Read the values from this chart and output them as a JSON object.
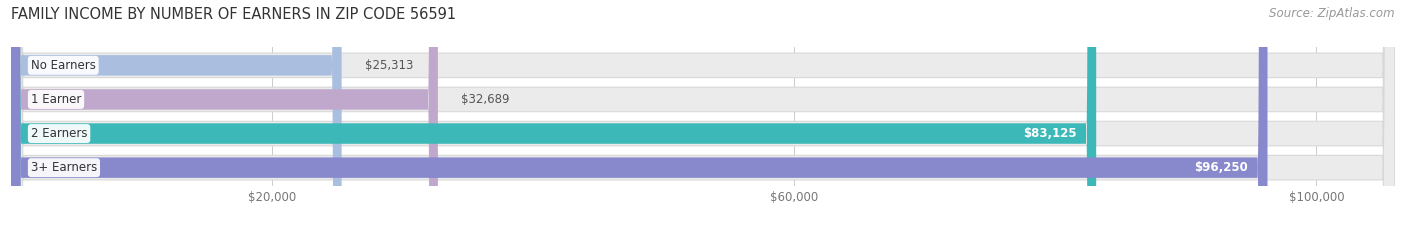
{
  "title": "FAMILY INCOME BY NUMBER OF EARNERS IN ZIP CODE 56591",
  "source": "Source: ZipAtlas.com",
  "categories": [
    "No Earners",
    "1 Earner",
    "2 Earners",
    "3+ Earners"
  ],
  "values": [
    25313,
    32689,
    83125,
    96250
  ],
  "bar_colors": [
    "#aabfdf",
    "#c0a8cc",
    "#3cb8b8",
    "#8888cc"
  ],
  "label_colors": [
    "#444444",
    "#444444",
    "#ffffff",
    "#ffffff"
  ],
  "value_labels": [
    "$25,313",
    "$32,689",
    "$83,125",
    "$96,250"
  ],
  "value_inside": [
    false,
    false,
    true,
    true
  ],
  "x_ticks": [
    20000,
    60000,
    100000
  ],
  "x_tick_labels": [
    "$20,000",
    "$60,000",
    "$100,000"
  ],
  "xmax": 106000,
  "background_color": "#ffffff",
  "bar_bg_color": "#ebebeb",
  "title_fontsize": 10.5,
  "source_fontsize": 8.5,
  "tick_fontsize": 8.5,
  "cat_label_fontsize": 8.5,
  "val_label_fontsize": 8.5
}
